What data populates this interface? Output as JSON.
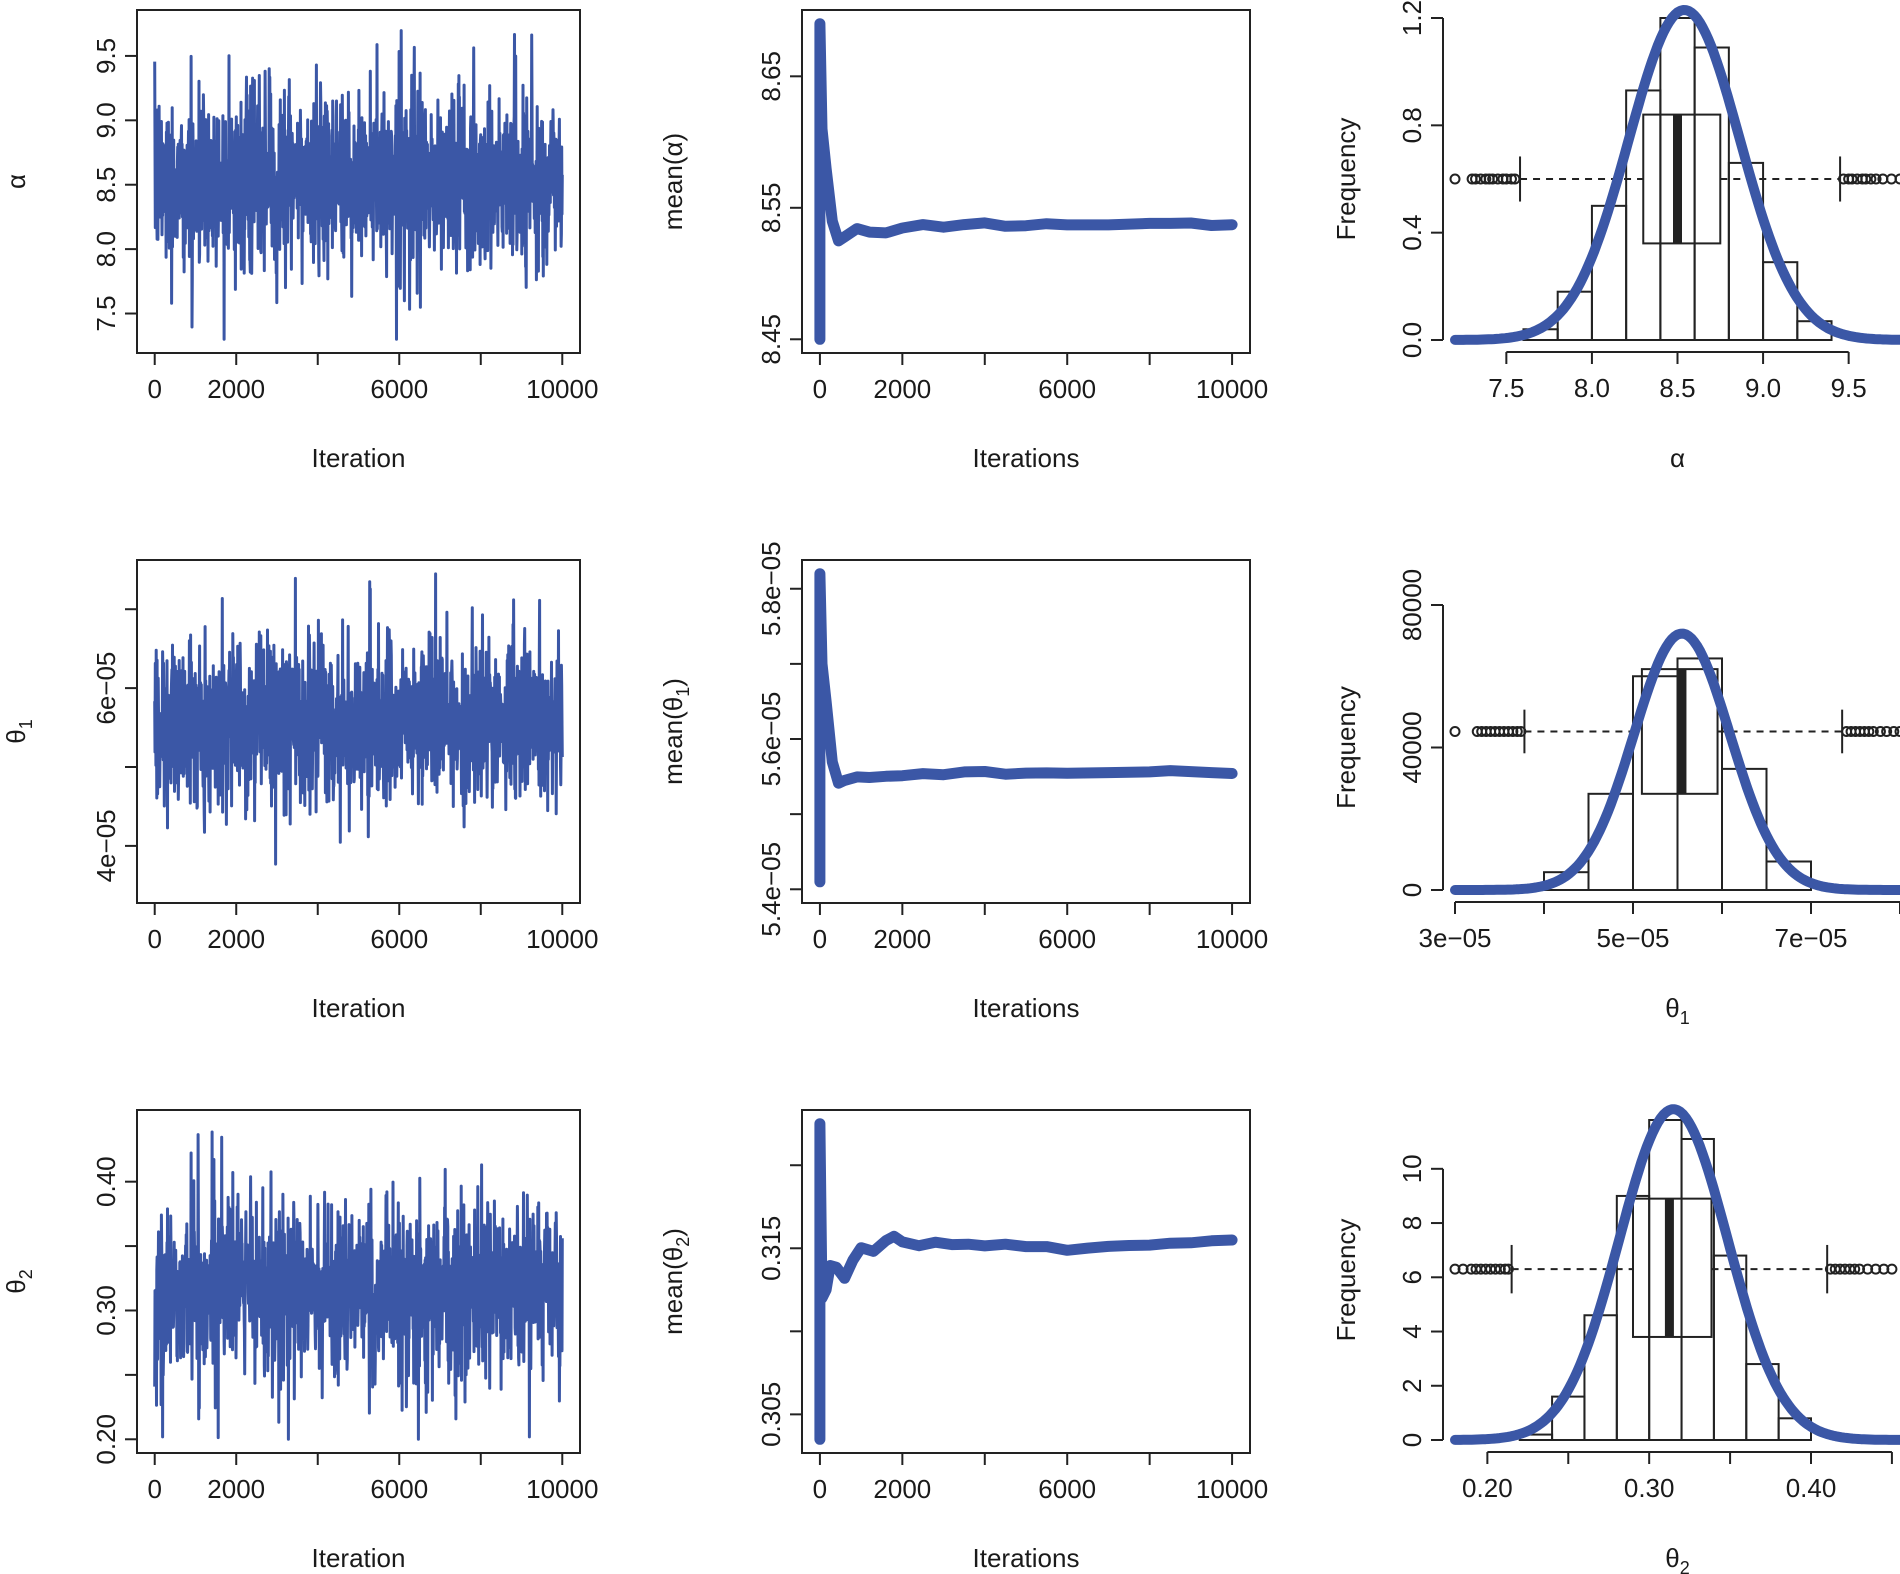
{
  "colors": {
    "series": "#3b57a6",
    "ink": "#222222",
    "background": "#ffffff"
  },
  "chart_data": [
    {
      "id": "trace-alpha",
      "type": "line",
      "panel": "trace",
      "xlabel": "Iteration",
      "ylabel": "α",
      "xlim": [
        0,
        10000
      ],
      "ylim": [
        7.3,
        9.75
      ],
      "xticks": [
        0,
        2000,
        6000,
        10000
      ],
      "xticks_minor": [
        4000,
        8000
      ],
      "yticks": [
        7.5,
        8.0,
        8.5,
        9.0,
        9.5
      ],
      "ytick_labels": [
        "7.5",
        "8.0",
        "8.5",
        "9.0",
        "9.5"
      ],
      "series": [
        {
          "n": 10000,
          "center": 8.54,
          "band": [
            7.95,
            9.15
          ],
          "min": 7.3,
          "max": 9.75
        }
      ]
    },
    {
      "id": "mean-alpha",
      "type": "line",
      "panel": "running-mean",
      "xlabel": "Iterations",
      "ylabel": "mean(α)",
      "xlim": [
        0,
        10000
      ],
      "ylim": [
        8.45,
        8.69
      ],
      "xticks": [
        0,
        2000,
        6000,
        10000
      ],
      "xticks_minor": [
        4000,
        8000
      ],
      "yticks": [
        8.45,
        8.55,
        8.65
      ],
      "ytick_labels": [
        "8.45",
        "8.55",
        "8.65"
      ],
      "series": [
        {
          "x": [
            0,
            0,
            50,
            150,
            300,
            450,
            600,
            900,
            1200,
            1600,
            2000,
            2500,
            3000,
            3500,
            4000,
            4500,
            5000,
            5500,
            6000,
            7000,
            8000,
            8500,
            9000,
            9500,
            10000
          ],
          "y": [
            8.45,
            8.69,
            8.61,
            8.58,
            8.54,
            8.525,
            8.528,
            8.534,
            8.532,
            8.531,
            8.535,
            8.537,
            8.535,
            8.537,
            8.538,
            8.536,
            8.537,
            8.538,
            8.537,
            8.537,
            8.538,
            8.538,
            8.539,
            8.537,
            8.537
          ]
        }
      ]
    },
    {
      "id": "hist-alpha",
      "type": "bar",
      "panel": "histogram",
      "xlabel": "α",
      "ylabel": "Frequency",
      "xlim": [
        7.2,
        9.8
      ],
      "ylim": [
        0,
        1.2
      ],
      "xticks": [
        7.5,
        8.0,
        8.5,
        9.0,
        9.5
      ],
      "xtick_labels": [
        "7.5",
        "8.0",
        "8.5",
        "9.0",
        "9.5"
      ],
      "yticks": [
        0.0,
        0.4,
        0.8,
        1.2
      ],
      "ytick_labels": [
        "0.0",
        "0.4",
        "0.8",
        "1.2"
      ],
      "bins": [
        {
          "x0": 7.6,
          "x1": 7.8,
          "h": 0.04
        },
        {
          "x0": 7.8,
          "x1": 8.0,
          "h": 0.18
        },
        {
          "x0": 8.0,
          "x1": 8.2,
          "h": 0.5
        },
        {
          "x0": 8.2,
          "x1": 8.4,
          "h": 0.93
        },
        {
          "x0": 8.4,
          "x1": 8.6,
          "h": 1.2
        },
        {
          "x0": 8.6,
          "x1": 8.8,
          "h": 1.09
        },
        {
          "x0": 8.8,
          "x1": 9.0,
          "h": 0.66
        },
        {
          "x0": 9.0,
          "x1": 9.2,
          "h": 0.29
        },
        {
          "x0": 9.2,
          "x1": 9.4,
          "h": 0.07
        }
      ],
      "density": {
        "mean": 8.54,
        "sd": 0.325,
        "peak": 1.23
      },
      "boxplot": {
        "y": 0.6,
        "box_h": [
          0.36,
          0.84
        ],
        "q1": 8.3,
        "median": 8.5,
        "q3": 8.75,
        "whisker_lo": 7.58,
        "whisker_hi": 9.45,
        "outliers_lo": [
          7.2,
          7.3,
          7.32,
          7.35,
          7.38,
          7.4,
          7.42,
          7.45,
          7.48,
          7.5,
          7.53,
          7.55
        ],
        "outliers_hi": [
          9.47,
          9.5,
          9.52,
          9.55,
          9.58,
          9.6,
          9.63,
          9.66,
          9.7,
          9.75,
          9.8
        ]
      }
    },
    {
      "id": "trace-theta1",
      "type": "line",
      "panel": "trace",
      "xlabel": "Iteration",
      "ylabel": "θ1",
      "xlim": [
        0,
        10000
      ],
      "ylim": [
        3.45e-05,
        7.45e-05
      ],
      "xticks": [
        0,
        2000,
        6000,
        10000
      ],
      "xticks_minor": [
        4000,
        8000
      ],
      "yticks": [
        4e-05,
        5e-05,
        6e-05,
        7e-05
      ],
      "ytick_labels": [
        "4e−05",
        "",
        "6e−05",
        ""
      ],
      "series": [
        {
          "n": 10000,
          "center": 5.55e-05,
          "band": [
            4.7e-05,
            6.5e-05
          ],
          "min": 3.45e-05,
          "max": 7.45e-05
        }
      ]
    },
    {
      "id": "mean-theta1",
      "type": "line",
      "panel": "running-mean",
      "xlabel": "Iterations",
      "ylabel": "mean(θ1)",
      "xlim": [
        0,
        10000
      ],
      "ylim": [
        5.4e-05,
        5.82e-05
      ],
      "xticks": [
        0,
        2000,
        6000,
        10000
      ],
      "xticks_minor": [
        4000,
        8000
      ],
      "yticks": [
        5.4e-05,
        5.5e-05,
        5.6e-05,
        5.7e-05,
        5.8e-05
      ],
      "ytick_labels": [
        "5.4e−05",
        "",
        "5.6e−05",
        "",
        "5.8e−05"
      ],
      "series": [
        {
          "x": [
            0,
            0,
            50,
            150,
            300,
            450,
            600,
            900,
            1200,
            1600,
            2000,
            2500,
            3000,
            3500,
            4000,
            4500,
            5000,
            5500,
            6000,
            7000,
            8000,
            8500,
            9000,
            9500,
            10000
          ],
          "y": [
            5.41e-05,
            5.82e-05,
            5.7e-05,
            5.65e-05,
            5.57e-05,
            5.54e-05,
            5.545e-05,
            5.55e-05,
            5.548e-05,
            5.55e-05,
            5.552e-05,
            5.554e-05,
            5.552e-05,
            5.556e-05,
            5.556e-05,
            5.553e-05,
            5.555e-05,
            5.556e-05,
            5.555e-05,
            5.556e-05,
            5.557e-05,
            5.557e-05,
            5.558e-05,
            5.556e-05,
            5.555e-05
          ]
        }
      ]
    },
    {
      "id": "hist-theta1",
      "type": "bar",
      "panel": "histogram",
      "xlabel": "θ1",
      "ylabel": "Frequency",
      "xlim": [
        3e-05,
        8e-05
      ],
      "ylim": [
        0,
        80000
      ],
      "xticks": [
        3e-05,
        4e-05,
        5e-05,
        6e-05,
        7e-05,
        8e-05
      ],
      "xtick_labels": [
        "3e−05",
        "",
        "5e−05",
        "",
        "7e−05",
        ""
      ],
      "yticks": [
        0,
        40000,
        80000
      ],
      "ytick_labels": [
        "0",
        "40000",
        "80000"
      ],
      "bins": [
        {
          "x0": 4e-05,
          "x1": 4.5e-05,
          "h": 5000
        },
        {
          "x0": 4.5e-05,
          "x1": 5e-05,
          "h": 27000
        },
        {
          "x0": 5e-05,
          "x1": 5.5e-05,
          "h": 60000
        },
        {
          "x0": 5.5e-05,
          "x1": 6e-05,
          "h": 65000
        },
        {
          "x0": 6e-05,
          "x1": 6.5e-05,
          "h": 34000
        },
        {
          "x0": 6.5e-05,
          "x1": 7e-05,
          "h": 8000
        }
      ],
      "density": {
        "mean": 5.55e-05,
        "sd": 5.4e-06,
        "peak": 72000
      },
      "boxplot": {
        "y": 44500,
        "box_h": [
          27000,
          62000
        ],
        "q1": 5.1e-05,
        "median": 5.55e-05,
        "q3": 5.95e-05,
        "whisker_lo": 3.78e-05,
        "whisker_hi": 7.35e-05,
        "outliers_lo": [
          3e-05,
          3.25e-05,
          3.3e-05,
          3.35e-05,
          3.4e-05,
          3.45e-05,
          3.5e-05,
          3.55e-05,
          3.6e-05,
          3.65e-05,
          3.7e-05,
          3.74e-05
        ],
        "outliers_hi": [
          7.4e-05,
          7.45e-05,
          7.5e-05,
          7.55e-05,
          7.6e-05,
          7.65e-05,
          7.7e-05,
          7.78e-05,
          7.85e-05,
          7.93e-05,
          8e-05
        ]
      }
    },
    {
      "id": "trace-theta2",
      "type": "line",
      "panel": "trace",
      "xlabel": "Iteration",
      "ylabel": "θ2",
      "xlim": [
        0,
        10000
      ],
      "ylim": [
        0.2,
        0.445
      ],
      "xticks": [
        0,
        2000,
        6000,
        10000
      ],
      "xticks_minor": [
        4000,
        8000
      ],
      "yticks": [
        0.2,
        0.25,
        0.3,
        0.35,
        0.4
      ],
      "ytick_labels": [
        "0.20",
        "",
        "0.30",
        "",
        "0.40"
      ],
      "series": [
        {
          "n": 10000,
          "center": 0.315,
          "band": [
            0.255,
            0.375
          ],
          "min": 0.2,
          "max": 0.445
        }
      ]
    },
    {
      "id": "mean-theta2",
      "type": "line",
      "panel": "running-mean",
      "xlabel": "Iterations",
      "ylabel": "mean(θ2)",
      "xlim": [
        0,
        10000
      ],
      "ylim": [
        0.3035,
        0.3225
      ],
      "xticks": [
        0,
        2000,
        6000,
        10000
      ],
      "xticks_minor": [
        4000,
        8000
      ],
      "yticks": [
        0.305,
        0.31,
        0.315,
        0.32
      ],
      "ytick_labels": [
        "0.305",
        "",
        "0.315",
        ""
      ],
      "series": [
        {
          "x": [
            0,
            0,
            50,
            150,
            250,
            400,
            600,
            800,
            1000,
            1300,
            1600,
            1800,
            2000,
            2400,
            2800,
            3200,
            3600,
            4000,
            4500,
            5000,
            5500,
            6000,
            6500,
            7000,
            7500,
            8000,
            8500,
            9000,
            9500,
            10000
          ],
          "y": [
            0.3035,
            0.3225,
            0.312,
            0.3125,
            0.314,
            0.3138,
            0.3132,
            0.3142,
            0.315,
            0.3148,
            0.3155,
            0.3157,
            0.3154,
            0.3151,
            0.3153,
            0.3152,
            0.3153,
            0.3151,
            0.3152,
            0.3151,
            0.3151,
            0.3149,
            0.315,
            0.3151,
            0.3152,
            0.3152,
            0.3153,
            0.3153,
            0.3155,
            0.3155
          ]
        }
      ]
    },
    {
      "id": "hist-theta2",
      "type": "bar",
      "panel": "histogram",
      "xlabel": "θ2",
      "ylabel": "Frequency",
      "xlim": [
        0.18,
        0.455
      ],
      "ylim": [
        0,
        11.8
      ],
      "xticks": [
        0.2,
        0.25,
        0.3,
        0.35,
        0.4,
        0.45
      ],
      "xtick_labels": [
        "0.20",
        "",
        "0.30",
        "",
        "0.40",
        ""
      ],
      "yticks": [
        0,
        2,
        4,
        6,
        8,
        10
      ],
      "ytick_labels": [
        "0",
        "2",
        "4",
        "6",
        "8",
        "10"
      ],
      "bins": [
        {
          "x0": 0.22,
          "x1": 0.24,
          "h": 0.2
        },
        {
          "x0": 0.24,
          "x1": 0.26,
          "h": 1.6
        },
        {
          "x0": 0.26,
          "x1": 0.28,
          "h": 4.6
        },
        {
          "x0": 0.28,
          "x1": 0.3,
          "h": 9.0
        },
        {
          "x0": 0.3,
          "x1": 0.32,
          "h": 11.8
        },
        {
          "x0": 0.32,
          "x1": 0.34,
          "h": 11.1
        },
        {
          "x0": 0.34,
          "x1": 0.36,
          "h": 6.8
        },
        {
          "x0": 0.36,
          "x1": 0.38,
          "h": 2.8
        },
        {
          "x0": 0.38,
          "x1": 0.4,
          "h": 0.8
        }
      ],
      "density": {
        "mean": 0.315,
        "sd": 0.0335,
        "peak": 12.2
      },
      "boxplot": {
        "y": 6.3,
        "box_h": [
          3.8,
          8.9
        ],
        "q1": 0.29,
        "median": 0.3125,
        "q3": 0.3385,
        "whisker_lo": 0.215,
        "whisker_hi": 0.41,
        "outliers_lo": [
          0.18,
          0.185,
          0.19,
          0.193,
          0.196,
          0.199,
          0.202,
          0.205,
          0.208,
          0.211,
          0.213
        ],
        "outliers_hi": [
          0.412,
          0.415,
          0.418,
          0.421,
          0.424,
          0.427,
          0.43,
          0.435,
          0.44,
          0.445,
          0.45
        ]
      }
    }
  ]
}
